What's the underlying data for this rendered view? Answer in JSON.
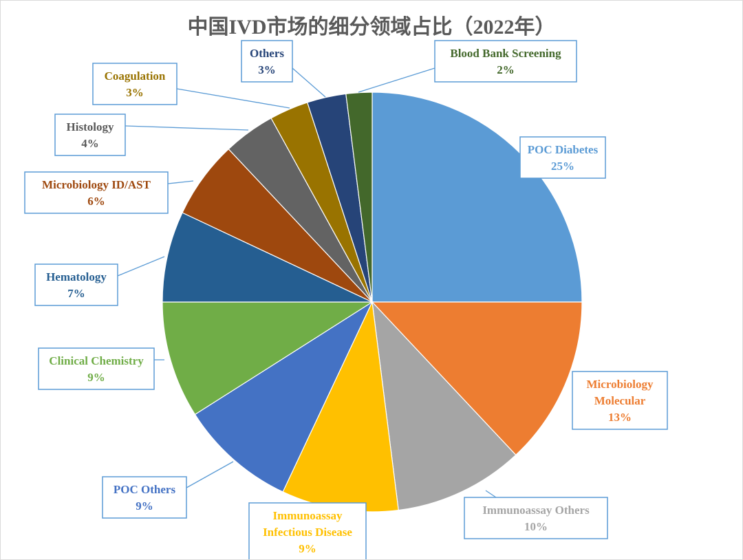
{
  "chart_data": {
    "type": "pie",
    "title": "中国IVD市场的细分领域占比（2022年）",
    "unit": "%",
    "slices": [
      {
        "lines": [
          "POC Diabetes"
        ],
        "value": 25,
        "value_label": "25%",
        "color": "#5b9bd5",
        "label_color": "#5b9bd5"
      },
      {
        "lines": [
          "Microbiology",
          "Molecular"
        ],
        "value": 13,
        "value_label": "13%",
        "color": "#ed7d31",
        "label_color": "#ed7d31"
      },
      {
        "lines": [
          "Immunoassay Others"
        ],
        "value": 10,
        "value_label": "10%",
        "color": "#a5a5a5",
        "label_color": "#a5a5a5"
      },
      {
        "lines": [
          "Immunoassay",
          "Infectious Disease"
        ],
        "value": 9,
        "value_label": "9%",
        "color": "#ffc000",
        "label_color": "#ffc000"
      },
      {
        "lines": [
          "POC Others"
        ],
        "value": 9,
        "value_label": "9%",
        "color": "#4472c4",
        "label_color": "#4472c4"
      },
      {
        "lines": [
          "Clinical Chemistry"
        ],
        "value": 9,
        "value_label": "9%",
        "color": "#70ad47",
        "label_color": "#70ad47"
      },
      {
        "lines": [
          "Hematology"
        ],
        "value": 7,
        "value_label": "7%",
        "color": "#255e91",
        "label_color": "#255e91"
      },
      {
        "lines": [
          "Microbiology ID/AST"
        ],
        "value": 6,
        "value_label": "6%",
        "color": "#9e480e",
        "label_color": "#9e480e"
      },
      {
        "lines": [
          "Histology"
        ],
        "value": 4,
        "value_label": "4%",
        "color": "#636363",
        "label_color": "#595959"
      },
      {
        "lines": [
          "Coagulation"
        ],
        "value": 3,
        "value_label": "3%",
        "color": "#997300",
        "label_color": "#997300"
      },
      {
        "lines": [
          "Others"
        ],
        "value": 3,
        "value_label": "3%",
        "color": "#264478",
        "label_color": "#264478"
      },
      {
        "lines": [
          "Blood Bank Screening"
        ],
        "value": 2,
        "value_label": "2%",
        "color": "#43682b",
        "label_color": "#43682b"
      }
    ]
  }
}
